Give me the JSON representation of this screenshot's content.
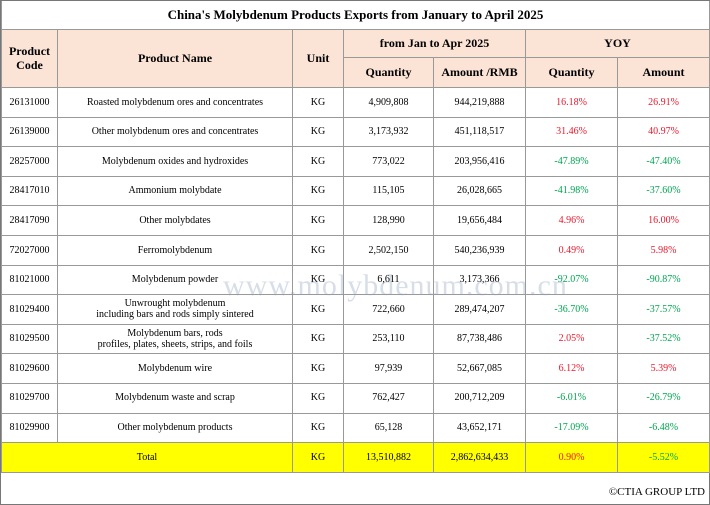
{
  "title": "China's Molybdenum Products Exports from January to April 2025",
  "header": {
    "code": "Product\nCode",
    "name": "Product Name",
    "unit": "Unit",
    "period": "from Jan to Apr 2025",
    "yoy": "YOY",
    "quantity": "Quantity",
    "amount": "Amount /RMB",
    "yoy_quantity": "Quantity",
    "yoy_amount": "Amount"
  },
  "table": {
    "rows": [
      [
        "26131000",
        "Roasted molybdenum ores and concentrates",
        "KG",
        "4,909,808",
        "944,219,888",
        "16.18%",
        "26.91%"
      ],
      [
        "26139000",
        "Other molybdenum ores and concentrates",
        "KG",
        "3,173,932",
        "451,118,517",
        "31.46%",
        "40.97%"
      ],
      [
        "28257000",
        "Molybdenum oxides and hydroxides",
        "KG",
        "773,022",
        "203,956,416",
        "-47.89%",
        "-47.40%"
      ],
      [
        "28417010",
        "Ammonium molybdate",
        "KG",
        "115,105",
        "26,028,665",
        "-41.98%",
        "-37.60%"
      ],
      [
        "28417090",
        "Other molybdates",
        "KG",
        "128,990",
        "19,656,484",
        "4.96%",
        "16.00%"
      ],
      [
        "72027000",
        "Ferromolybdenum",
        "KG",
        "2,502,150",
        "540,236,939",
        "0.49%",
        "5.98%"
      ],
      [
        "81021000",
        "Molybdenum powder",
        "KG",
        "6,611",
        "3,173,366",
        "-92.07%",
        "-90.87%"
      ],
      [
        "81029400",
        "Unwrought molybdenum\nincluding bars and rods simply sintered",
        "KG",
        "722,660",
        "289,474,207",
        "-36.70%",
        "-37.57%"
      ],
      [
        "81029500",
        "Molybdenum bars, rods\nprofiles, plates, sheets, strips, and foils",
        "KG",
        "253,110",
        "87,738,486",
        "2.05%",
        "-37.52%"
      ],
      [
        "81029600",
        "Molybdenum wire",
        "KG",
        "97,939",
        "52,667,085",
        "6.12%",
        "5.39%"
      ],
      [
        "81029700",
        "Molybdenum waste and scrap",
        "KG",
        "762,427",
        "200,712,209",
        "-6.01%",
        "-26.79%"
      ],
      [
        "81029900",
        "Other molybdenum products",
        "KG",
        "65,128",
        "43,652,171",
        "-17.09%",
        "-6.48%"
      ]
    ],
    "total": [
      "Total",
      "KG",
      "13,510,882",
      "2,862,634,433",
      "0.90%",
      "-5.52%"
    ]
  },
  "footer": "©CTIA GROUP LTD",
  "watermark": "www.molybdenum.com.cn"
}
